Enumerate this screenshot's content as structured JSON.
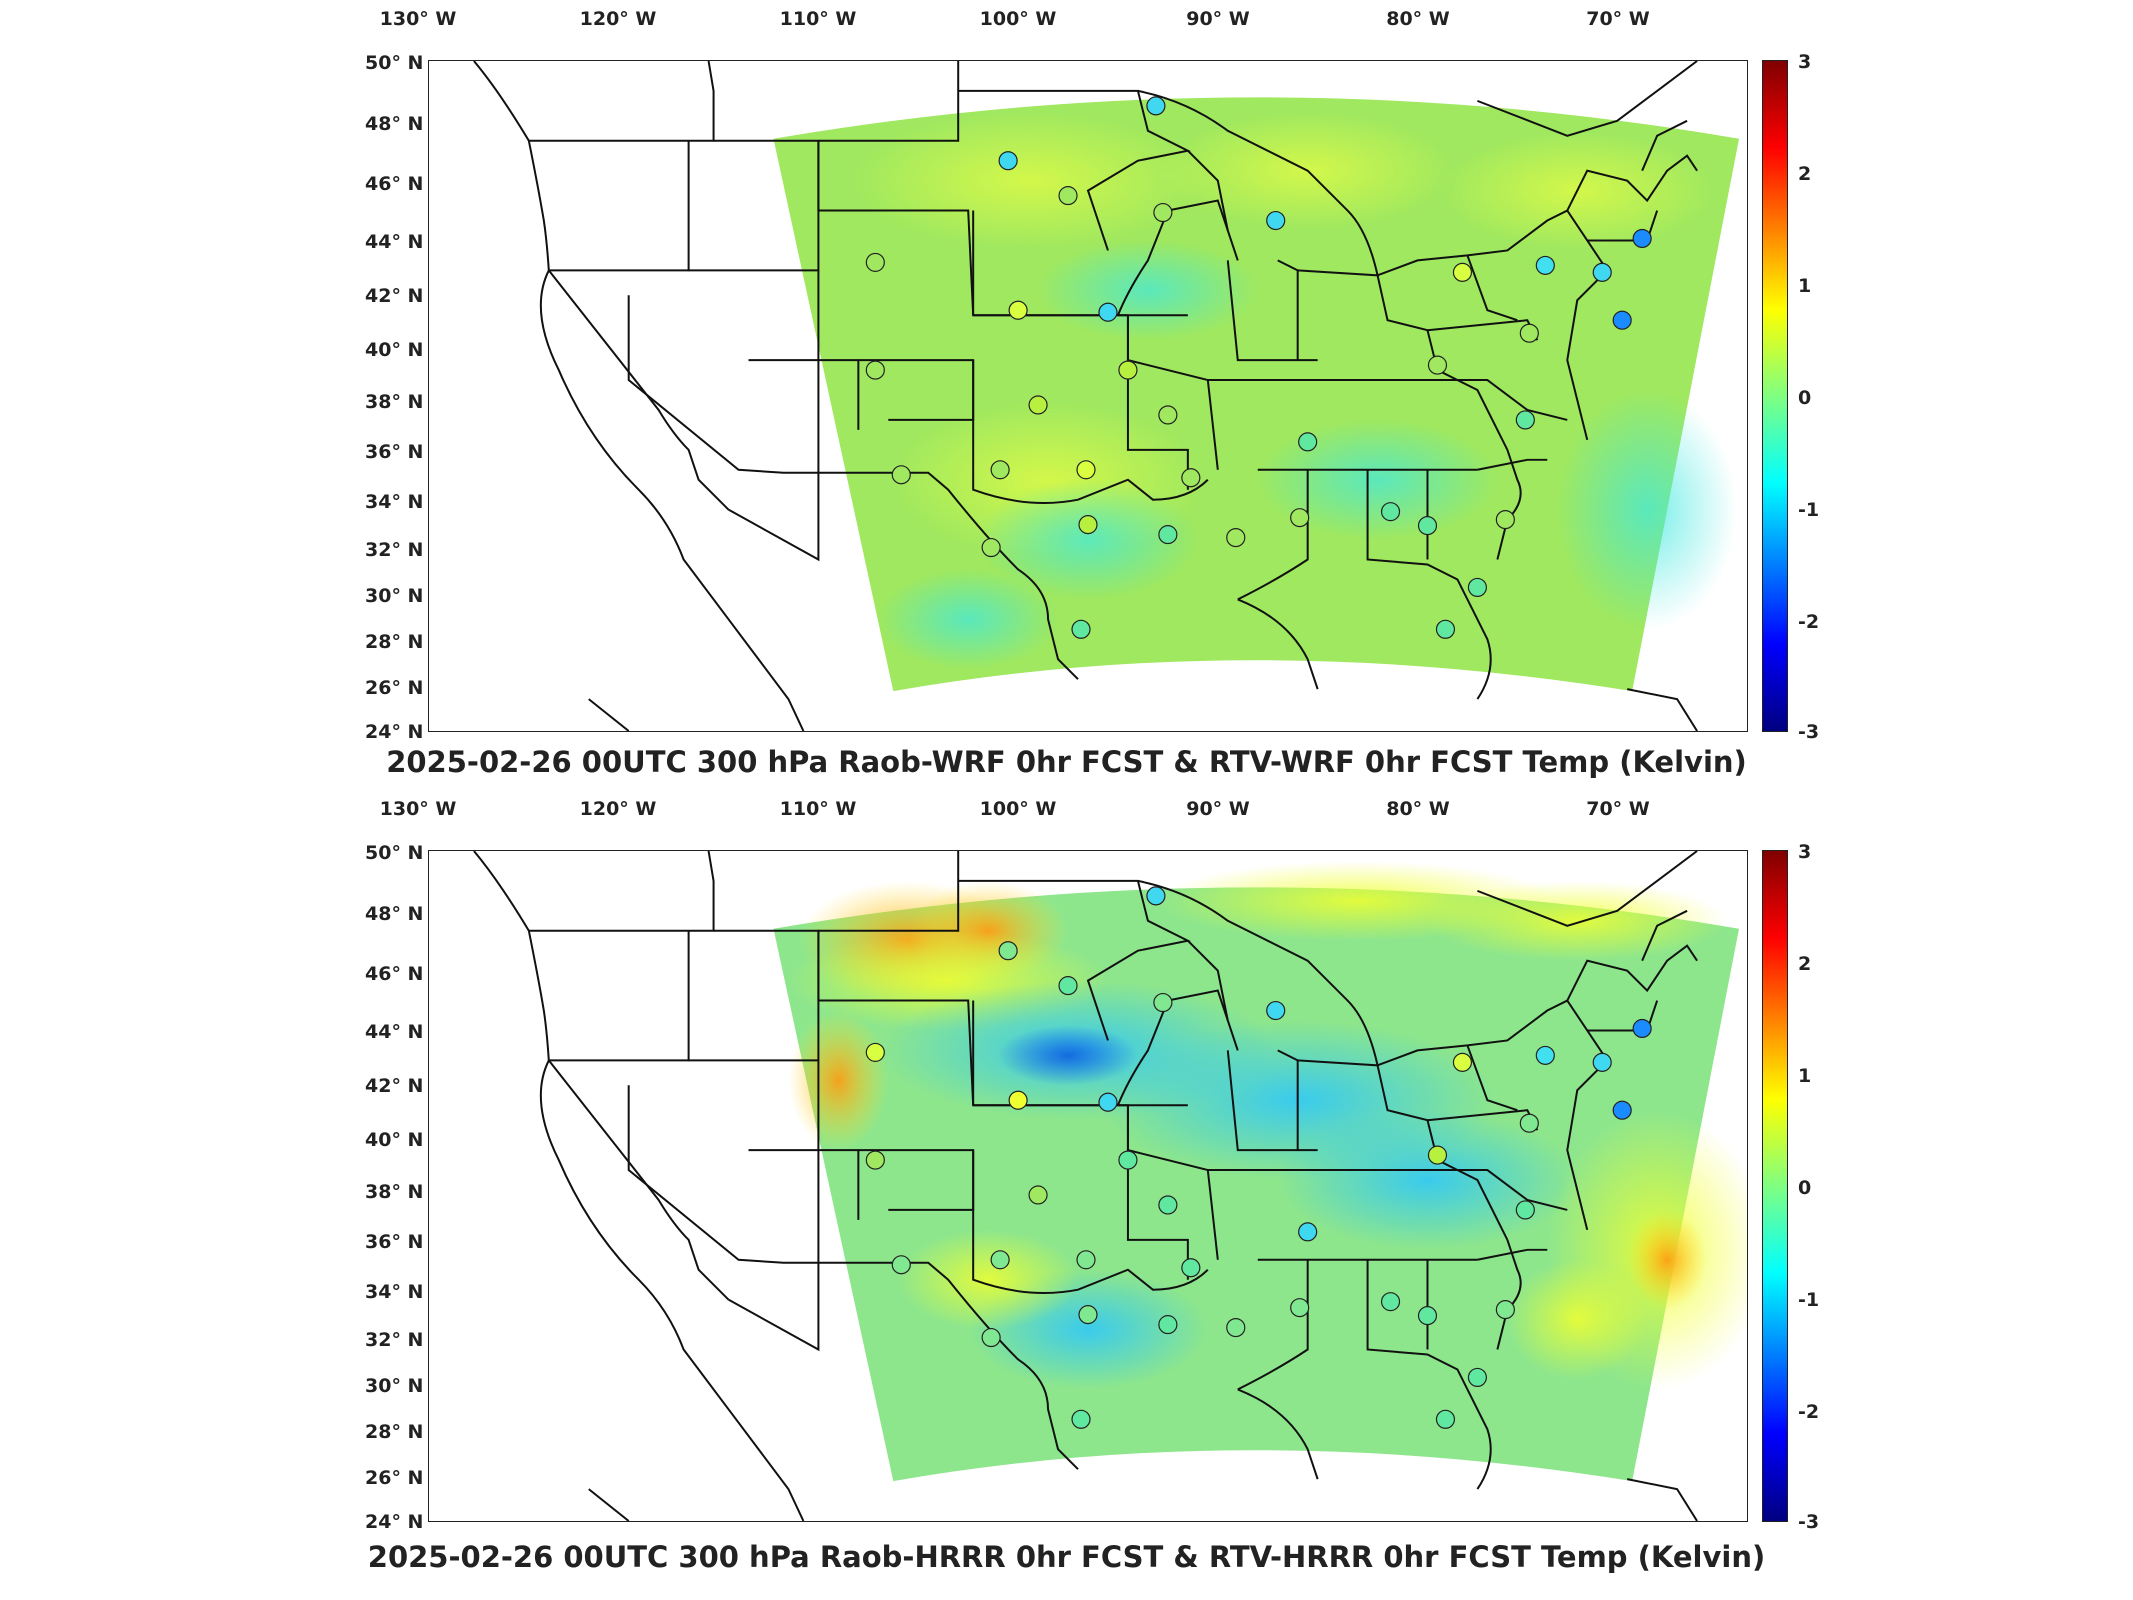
{
  "lon_labels": [
    "130° W",
    "120° W",
    "110° W",
    "100° W",
    "90° W",
    "80° W",
    "70° W"
  ],
  "lat_labels": [
    "50° N",
    "48° N",
    "46° N",
    "44° N",
    "42° N",
    "40° N",
    "38° N",
    "36° N",
    "34° N",
    "32° N",
    "30° N",
    "28° N",
    "26° N",
    "24° N"
  ],
  "colorbar": {
    "ticks": [
      "3",
      "2",
      "1",
      "0",
      "-1",
      "-2",
      "-3"
    ],
    "colormap": "jet",
    "range": [
      -3,
      3
    ]
  },
  "panels": [
    {
      "title": "2025-02-26 00UTC 300 hPa Raob-WRF 0hr FCST & RTV-WRF 0hr FCST Temp (Kelvin)",
      "field_base_color": "#9fe860"
    },
    {
      "title": "2025-02-26 00UTC 300 hPa Raob-HRRR 0hr FCST & RTV-HRRR 0hr FCST Temp (Kelvin)",
      "field_base_color": "#8ee68c"
    }
  ]
}
